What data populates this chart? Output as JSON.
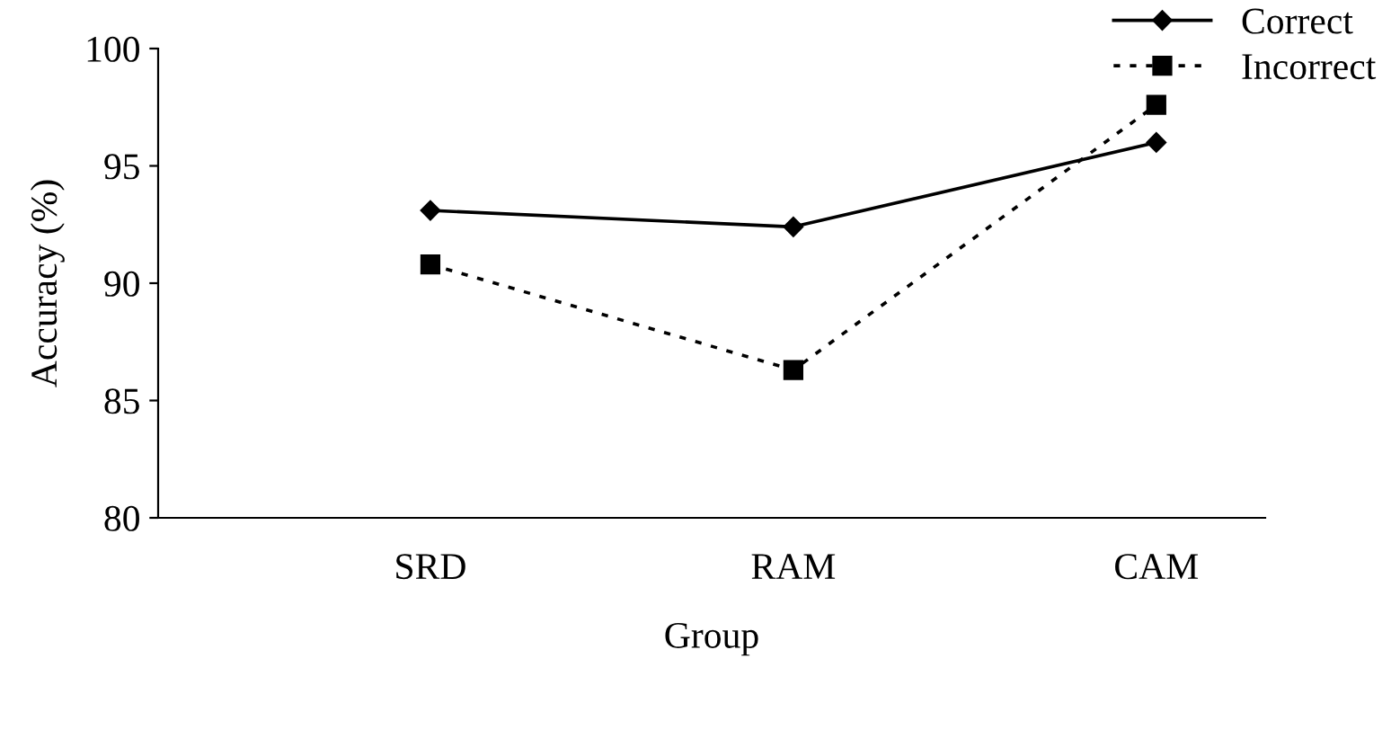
{
  "chart_data": {
    "type": "line",
    "xlabel": "Group",
    "ylabel": "Accuracy (%)",
    "categories": [
      "SRD",
      "RAM",
      "CAM"
    ],
    "series": [
      {
        "name": "Correct",
        "color": "#000000",
        "values": [
          93.1,
          92.4,
          96.0
        ],
        "marker": "diamond",
        "line_style": "solid"
      },
      {
        "name": "Incorrect",
        "color": "#000000",
        "values": [
          90.8,
          86.3,
          97.6
        ],
        "marker": "square",
        "line_style": "dotted"
      }
    ],
    "ylim": [
      80,
      100
    ],
    "yticks": [
      80,
      85,
      90,
      95,
      100
    ],
    "grid": false,
    "legend": "top right"
  }
}
